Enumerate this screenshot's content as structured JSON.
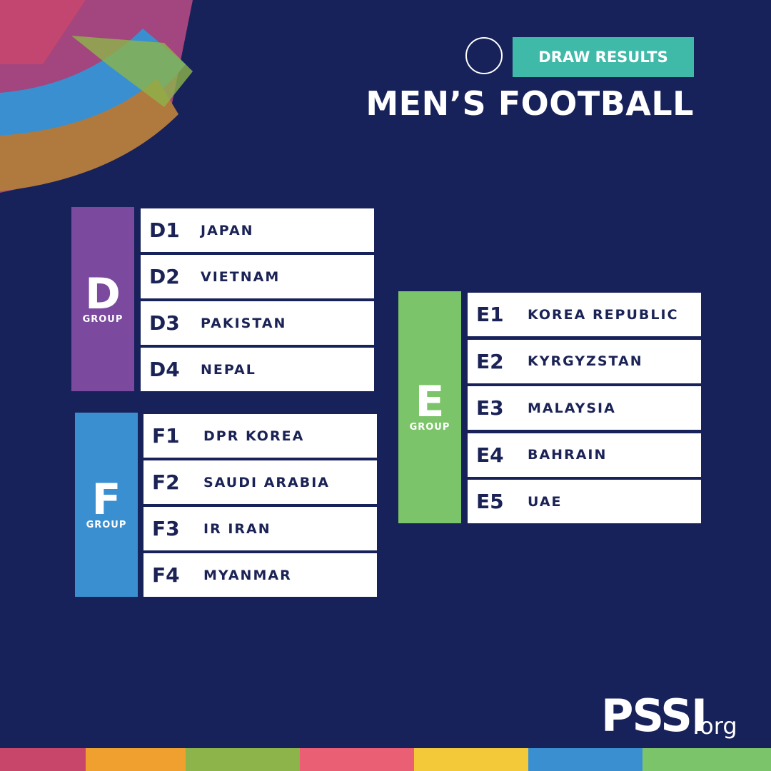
{
  "header": {
    "badge": "DRAW RESULTS",
    "title": "MEN’S FOOTBALL"
  },
  "groups": [
    {
      "letter": "D",
      "label": "GROUP",
      "teams": [
        {
          "seed": "D1",
          "name": "JAPAN"
        },
        {
          "seed": "D2",
          "name": "VIETNAM"
        },
        {
          "seed": "D3",
          "name": "PAKISTAN"
        },
        {
          "seed": "D4",
          "name": "NEPAL"
        }
      ]
    },
    {
      "letter": "F",
      "label": "GROUP",
      "teams": [
        {
          "seed": "F1",
          "name": "DPR KOREA"
        },
        {
          "seed": "F2",
          "name": "SAUDI ARABIA"
        },
        {
          "seed": "F3",
          "name": "IR IRAN"
        },
        {
          "seed": "F4",
          "name": "MYANMAR"
        }
      ]
    },
    {
      "letter": "E",
      "label": "GROUP",
      "teams": [
        {
          "seed": "E1",
          "name": "KOREA REPUBLIC"
        },
        {
          "seed": "E2",
          "name": "KYRGYZSTAN"
        },
        {
          "seed": "E3",
          "name": "MALAYSIA"
        },
        {
          "seed": "E4",
          "name": "BAHRAIN"
        },
        {
          "seed": "E5",
          "name": "UAE"
        }
      ]
    }
  ],
  "footer": {
    "brand": "PSSI",
    "suffix": ".org"
  }
}
